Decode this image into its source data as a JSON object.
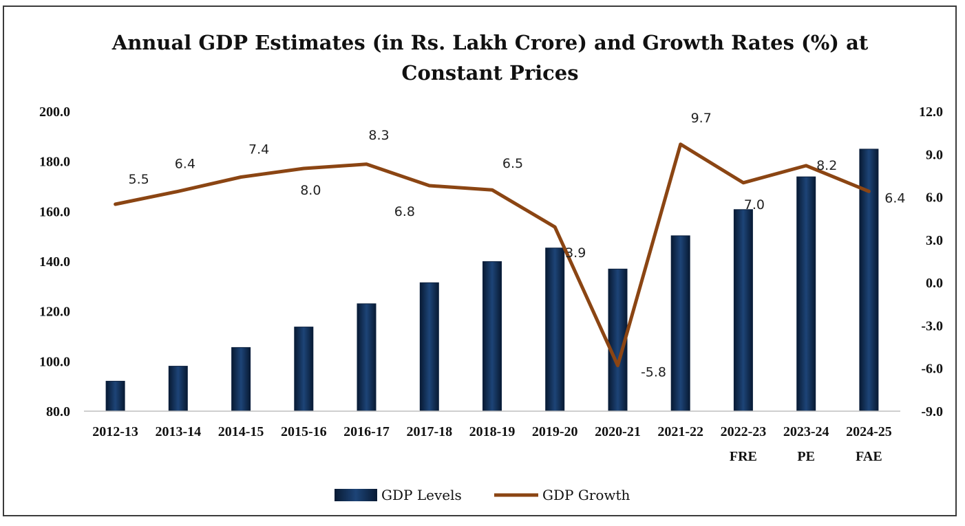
{
  "chart_data": {
    "type": "bar+line",
    "title": "Annual GDP Estimates (in Rs. Lakh Crore) and Growth Rates (%) at",
    "title_line2": "Constant Prices",
    "categories": [
      "2012-13",
      "2013-14",
      "2014-15",
      "2015-16",
      "2016-17",
      "2017-18",
      "2018-19",
      "2019-20",
      "2020-21",
      "2021-22",
      "2022-23",
      "2023-24",
      "2024-25"
    ],
    "category_sublabels": [
      "",
      "",
      "",
      "",
      "",
      "",
      "",
      "",
      "",
      "",
      "FRE",
      "PE",
      "FAE"
    ],
    "series": [
      {
        "name": "GDP Levels",
        "type": "bar",
        "axis": "left",
        "color": "#0f2a4f",
        "values": [
          92.0,
          98.0,
          105.5,
          113.7,
          123.0,
          131.4,
          139.9,
          145.3,
          136.9,
          150.2,
          160.7,
          173.8,
          184.9
        ]
      },
      {
        "name": "GDP Growth",
        "type": "line",
        "axis": "right",
        "color": "#8b4513",
        "values": [
          5.5,
          6.4,
          7.4,
          8.0,
          8.3,
          6.8,
          6.5,
          3.9,
          -5.8,
          9.7,
          7.0,
          8.2,
          6.4
        ],
        "labels": [
          "5.5",
          "6.4",
          "7.4",
          "8.0",
          "8.3",
          "6.8",
          "6.5",
          "3.9",
          "-5.8",
          "9.7",
          "7.0",
          "8.2",
          "6.4"
        ]
      }
    ],
    "left_axis": {
      "ylim": [
        80,
        200
      ],
      "ticks": [
        80,
        100,
        120,
        140,
        160,
        180,
        200
      ],
      "tick_labels": [
        "80.0",
        "100.0",
        "120.0",
        "140.0",
        "160.0",
        "180.0",
        "200.0"
      ]
    },
    "right_axis": {
      "ylim": [
        -9,
        12
      ],
      "ticks": [
        -9,
        -6,
        -3,
        0,
        3,
        6,
        9,
        12
      ],
      "tick_labels": [
        "-9.0",
        "-6.0",
        "-3.0",
        "0.0",
        "3.0",
        "6.0",
        "9.0",
        "12.0"
      ]
    },
    "legend": {
      "position": "bottom",
      "entries": [
        "GDP Levels",
        "GDP Growth"
      ]
    },
    "grid": false
  }
}
